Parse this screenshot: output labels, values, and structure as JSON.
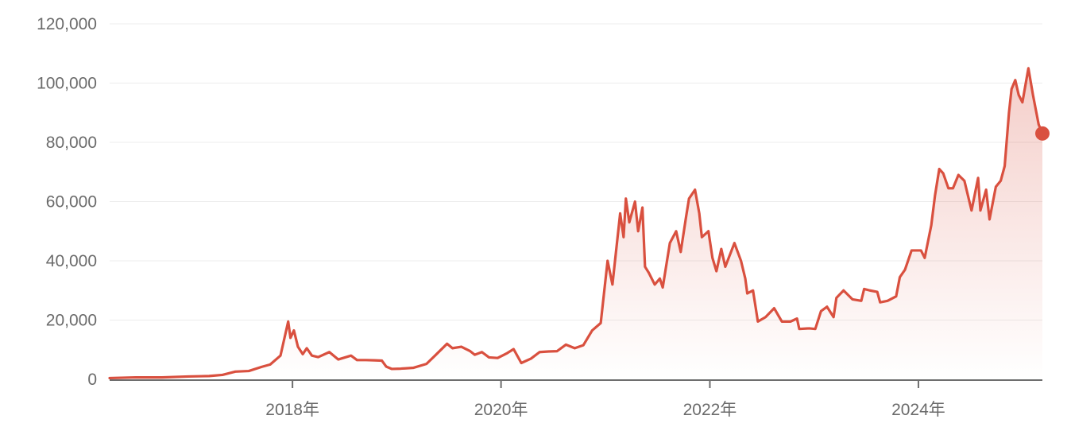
{
  "chart_data": {
    "type": "area",
    "title": "",
    "xlabel": "",
    "ylabel": "",
    "x_range": [
      "2016-04-01",
      "2025-03-10"
    ],
    "ylim": [
      0,
      120000
    ],
    "y_ticks": [
      0,
      20000,
      40000,
      60000,
      80000,
      100000,
      120000
    ],
    "y_tick_labels": [
      "0",
      "20,000",
      "40,000",
      "60,000",
      "80,000",
      "100,000",
      "120,000"
    ],
    "x_ticks": [
      "2018-01-01",
      "2020-01-01",
      "2022-01-01",
      "2024-01-01"
    ],
    "x_tick_labels": [
      "2018年",
      "2020年",
      "2022年",
      "2024年"
    ],
    "grid": "horizontal",
    "legend": "none",
    "line_color": "#d9503f",
    "fill_color": "#d9503f",
    "series": [
      {
        "values_x": [
          "2016-04-01",
          "2016-07-01",
          "2016-10-01",
          "2017-01-01",
          "2017-03-15",
          "2017-05-01",
          "2017-06-15",
          "2017-08-01",
          "2017-09-15",
          "2017-10-15",
          "2017-11-20",
          "2017-12-17",
          "2017-12-25",
          "2018-01-06",
          "2018-01-20",
          "2018-02-06",
          "2018-02-20",
          "2018-03-10",
          "2018-04-01",
          "2018-05-10",
          "2018-06-10",
          "2018-07-25",
          "2018-08-15",
          "2018-09-15",
          "2018-10-15",
          "2018-11-10",
          "2018-11-25",
          "2018-12-15",
          "2019-01-15",
          "2019-03-01",
          "2019-04-15",
          "2019-05-15",
          "2019-06-26",
          "2019-07-15",
          "2019-08-15",
          "2019-09-15",
          "2019-10-01",
          "2019-10-26",
          "2019-11-20",
          "2019-12-20",
          "2020-01-20",
          "2020-02-14",
          "2020-03-12",
          "2020-04-15",
          "2020-05-15",
          "2020-06-15",
          "2020-07-15",
          "2020-08-15",
          "2020-09-15",
          "2020-10-15",
          "2020-11-15",
          "2020-12-15",
          "2021-01-08",
          "2021-01-25",
          "2021-02-21",
          "2021-03-05",
          "2021-03-13",
          "2021-03-25",
          "2021-04-14",
          "2021-04-25",
          "2021-05-10",
          "2021-05-19",
          "2021-06-01",
          "2021-06-22",
          "2021-07-10",
          "2021-07-20",
          "2021-08-14",
          "2021-09-05",
          "2021-09-21",
          "2021-10-10",
          "2021-10-20",
          "2021-11-10",
          "2021-11-25",
          "2021-12-04",
          "2021-12-27",
          "2022-01-10",
          "2022-01-24",
          "2022-02-10",
          "2022-02-24",
          "2022-03-28",
          "2022-04-20",
          "2022-05-05",
          "2022-05-12",
          "2022-06-01",
          "2022-06-18",
          "2022-07-15",
          "2022-08-14",
          "2022-09-10",
          "2022-10-10",
          "2022-11-02",
          "2022-11-10",
          "2022-12-15",
          "2023-01-05",
          "2023-01-25",
          "2023-02-15",
          "2023-03-10",
          "2023-03-20",
          "2023-04-14",
          "2023-05-15",
          "2023-06-15",
          "2023-06-25",
          "2023-07-15",
          "2023-08-10",
          "2023-08-20",
          "2023-09-15",
          "2023-10-15",
          "2023-10-28",
          "2023-11-15",
          "2023-12-08",
          "2024-01-10",
          "2024-01-23",
          "2024-02-15",
          "2024-02-28",
          "2024-03-14",
          "2024-03-28",
          "2024-04-15",
          "2024-05-01",
          "2024-05-20",
          "2024-06-10",
          "2024-07-05",
          "2024-07-28",
          "2024-08-05",
          "2024-08-25",
          "2024-09-06",
          "2024-09-28",
          "2024-10-15",
          "2024-10-29",
          "2024-11-13",
          "2024-11-22",
          "2024-12-05",
          "2024-12-17",
          "2024-12-30",
          "2025-01-20",
          "2025-02-05",
          "2025-02-25",
          "2025-03-10"
        ],
        "values": [
          420,
          650,
          640,
          960,
          1100,
          1500,
          2600,
          2800,
          4200,
          5000,
          8000,
          19500,
          14000,
          16500,
          11000,
          8500,
          10500,
          8000,
          7500,
          9200,
          6700,
          8000,
          6500,
          6500,
          6400,
          6300,
          4300,
          3500,
          3600,
          3900,
          5200,
          8000,
          12000,
          10500,
          11000,
          9500,
          8300,
          9200,
          7400,
          7200,
          8700,
          10200,
          5500,
          7000,
          9200,
          9400,
          9500,
          11700,
          10500,
          11500,
          16500,
          19000,
          40000,
          32000,
          56000,
          48000,
          61000,
          53000,
          60000,
          50000,
          58000,
          38000,
          36000,
          32000,
          34000,
          31000,
          46000,
          50000,
          43000,
          55000,
          61000,
          64000,
          56000,
          48000,
          50000,
          41000,
          36500,
          44000,
          38000,
          46000,
          40000,
          34000,
          29000,
          30000,
          19500,
          21000,
          24000,
          19500,
          19500,
          20500,
          17000,
          17200,
          17000,
          23000,
          24500,
          21000,
          27500,
          30000,
          27000,
          26500,
          30500,
          30000,
          29500,
          26000,
          26500,
          28000,
          34500,
          37000,
          43500,
          43500,
          41000,
          52000,
          62000,
          71000,
          69500,
          64500,
          64500,
          69000,
          67000,
          57000,
          68000,
          57000,
          64000,
          54000,
          65000,
          67000,
          72000,
          90000,
          98000,
          101000,
          96000,
          93500,
          105000,
          96000,
          86000,
          83000
        ]
      }
    ]
  }
}
